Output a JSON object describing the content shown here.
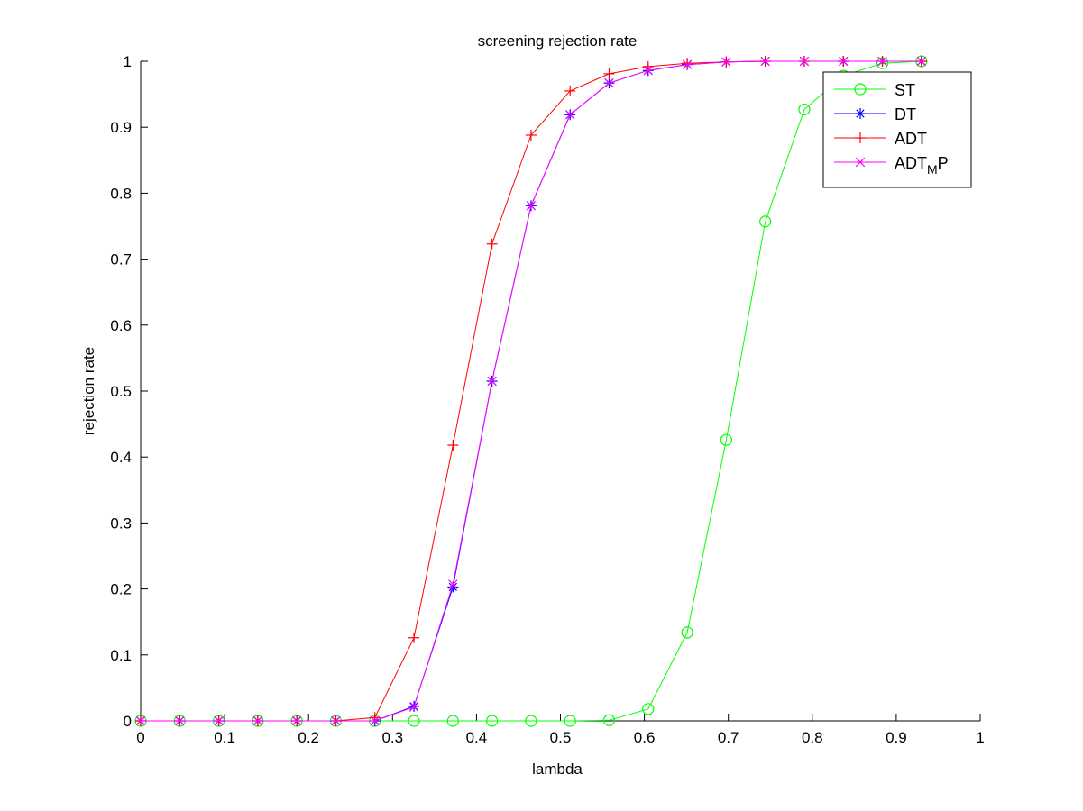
{
  "chart_data": {
    "type": "line",
    "title": "screening rejection rate",
    "xlabel": "lambda",
    "ylabel": "rejection rate",
    "xlim": [
      0,
      1
    ],
    "ylim": [
      0,
      1
    ],
    "xticks": [
      0,
      0.1,
      0.2,
      0.3,
      0.4,
      0.5,
      0.6,
      0.7,
      0.8,
      0.9,
      1
    ],
    "xtick_labels": [
      "0",
      "0.1",
      "0.2",
      "0.3",
      "0.4",
      "0.5",
      "0.6",
      "0.7",
      "0.8",
      "0.9",
      "1"
    ],
    "yticks": [
      0,
      0.1,
      0.2,
      0.3,
      0.4,
      0.5,
      0.6,
      0.7,
      0.8,
      0.9,
      1
    ],
    "ytick_labels": [
      "0",
      "0.1",
      "0.2",
      "0.3",
      "0.4",
      "0.5",
      "0.6",
      "0.7",
      "0.8",
      "0.9",
      "1"
    ],
    "grid": false,
    "legend_position": "top-right",
    "x": [
      0,
      0.0465,
      0.093,
      0.1395,
      0.186,
      0.2325,
      0.279,
      0.3255,
      0.372,
      0.4185,
      0.465,
      0.5115,
      0.558,
      0.6045,
      0.651,
      0.6975,
      0.744,
      0.7905,
      0.837,
      0.8835,
      0.93
    ],
    "series": [
      {
        "name": "ST",
        "color": "#00ff00",
        "marker": "circle",
        "values": [
          0,
          0,
          0,
          0,
          0,
          0,
          0,
          0,
          0,
          0,
          0,
          0,
          0.001,
          0.018,
          0.134,
          0.426,
          0.757,
          0.927,
          0.978,
          0.997,
          1.0
        ]
      },
      {
        "name": "DT",
        "color": "#0000ff",
        "marker": "asterisk",
        "values": [
          0,
          0,
          0,
          0,
          0,
          0,
          0,
          0.022,
          0.203,
          0.515,
          0.781,
          0.919,
          0.967,
          0.986,
          0.995,
          0.999,
          1.0,
          1.0,
          1.0,
          1.0,
          1.0
        ]
      },
      {
        "name": "ADT",
        "color": "#ff0000",
        "marker": "plus",
        "values": [
          0,
          0,
          0,
          0,
          0,
          0,
          0.005,
          0.126,
          0.418,
          0.723,
          0.888,
          0.955,
          0.981,
          0.992,
          0.997,
          0.999,
          1.0,
          1.0,
          1.0,
          1.0,
          1.0
        ]
      },
      {
        "name": "ADT",
        "name_subscript": "M",
        "name_suffix": "P",
        "color": "#ff00ff",
        "marker": "cross",
        "values": [
          0,
          0,
          0,
          0,
          0,
          0,
          0,
          0.021,
          0.207,
          0.515,
          0.781,
          0.919,
          0.967,
          0.986,
          0.995,
          0.999,
          1.0,
          1.0,
          1.0,
          1.0,
          1.0
        ]
      }
    ]
  }
}
